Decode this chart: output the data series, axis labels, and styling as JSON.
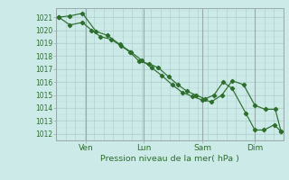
{
  "bg_color": "#cceae7",
  "grid_major_color": "#aacccc",
  "grid_minor_color": "#bbdddd",
  "line_color": "#2d6e2d",
  "marker_color": "#2d6e2d",
  "ylabel": "Pression niveau de la mer( hPa )",
  "ylim": [
    1011.5,
    1021.7
  ],
  "yticks": [
    1012,
    1013,
    1014,
    1015,
    1016,
    1017,
    1018,
    1019,
    1020,
    1021
  ],
  "xtick_labels": [
    "Ven",
    "Lun",
    "Sam",
    "Dim"
  ],
  "xtick_positions": [
    0.13,
    0.385,
    0.645,
    0.875
  ],
  "vline_positions": [
    0.0,
    0.13,
    0.385,
    0.645,
    0.875,
    1.0
  ],
  "vline_color": "#99aaaa",
  "series1_x": [
    0.01,
    0.06,
    0.115,
    0.155,
    0.195,
    0.24,
    0.285,
    0.325,
    0.365,
    0.41,
    0.45,
    0.495,
    0.535,
    0.575,
    0.615,
    0.655,
    0.695,
    0.735,
    0.775,
    0.835,
    0.875,
    0.915,
    0.96,
    0.99
  ],
  "series1_y": [
    1021.0,
    1020.4,
    1020.6,
    1020.0,
    1019.5,
    1019.3,
    1018.8,
    1018.3,
    1017.6,
    1017.4,
    1017.1,
    1016.4,
    1015.8,
    1015.3,
    1015.0,
    1014.7,
    1015.0,
    1016.0,
    1015.5,
    1013.6,
    1012.3,
    1012.3,
    1012.7,
    1012.2
  ],
  "series2_x": [
    0.01,
    0.06,
    0.115,
    0.175,
    0.225,
    0.28,
    0.33,
    0.375,
    0.42,
    0.465,
    0.51,
    0.555,
    0.6,
    0.645,
    0.685,
    0.73,
    0.775,
    0.825,
    0.875,
    0.92,
    0.965,
    0.99
  ],
  "series2_y": [
    1021.0,
    1021.1,
    1021.3,
    1019.9,
    1019.6,
    1018.9,
    1018.3,
    1017.7,
    1017.1,
    1016.5,
    1015.8,
    1015.2,
    1014.9,
    1014.6,
    1014.5,
    1015.0,
    1016.1,
    1015.8,
    1014.2,
    1013.9,
    1013.9,
    1012.2
  ]
}
